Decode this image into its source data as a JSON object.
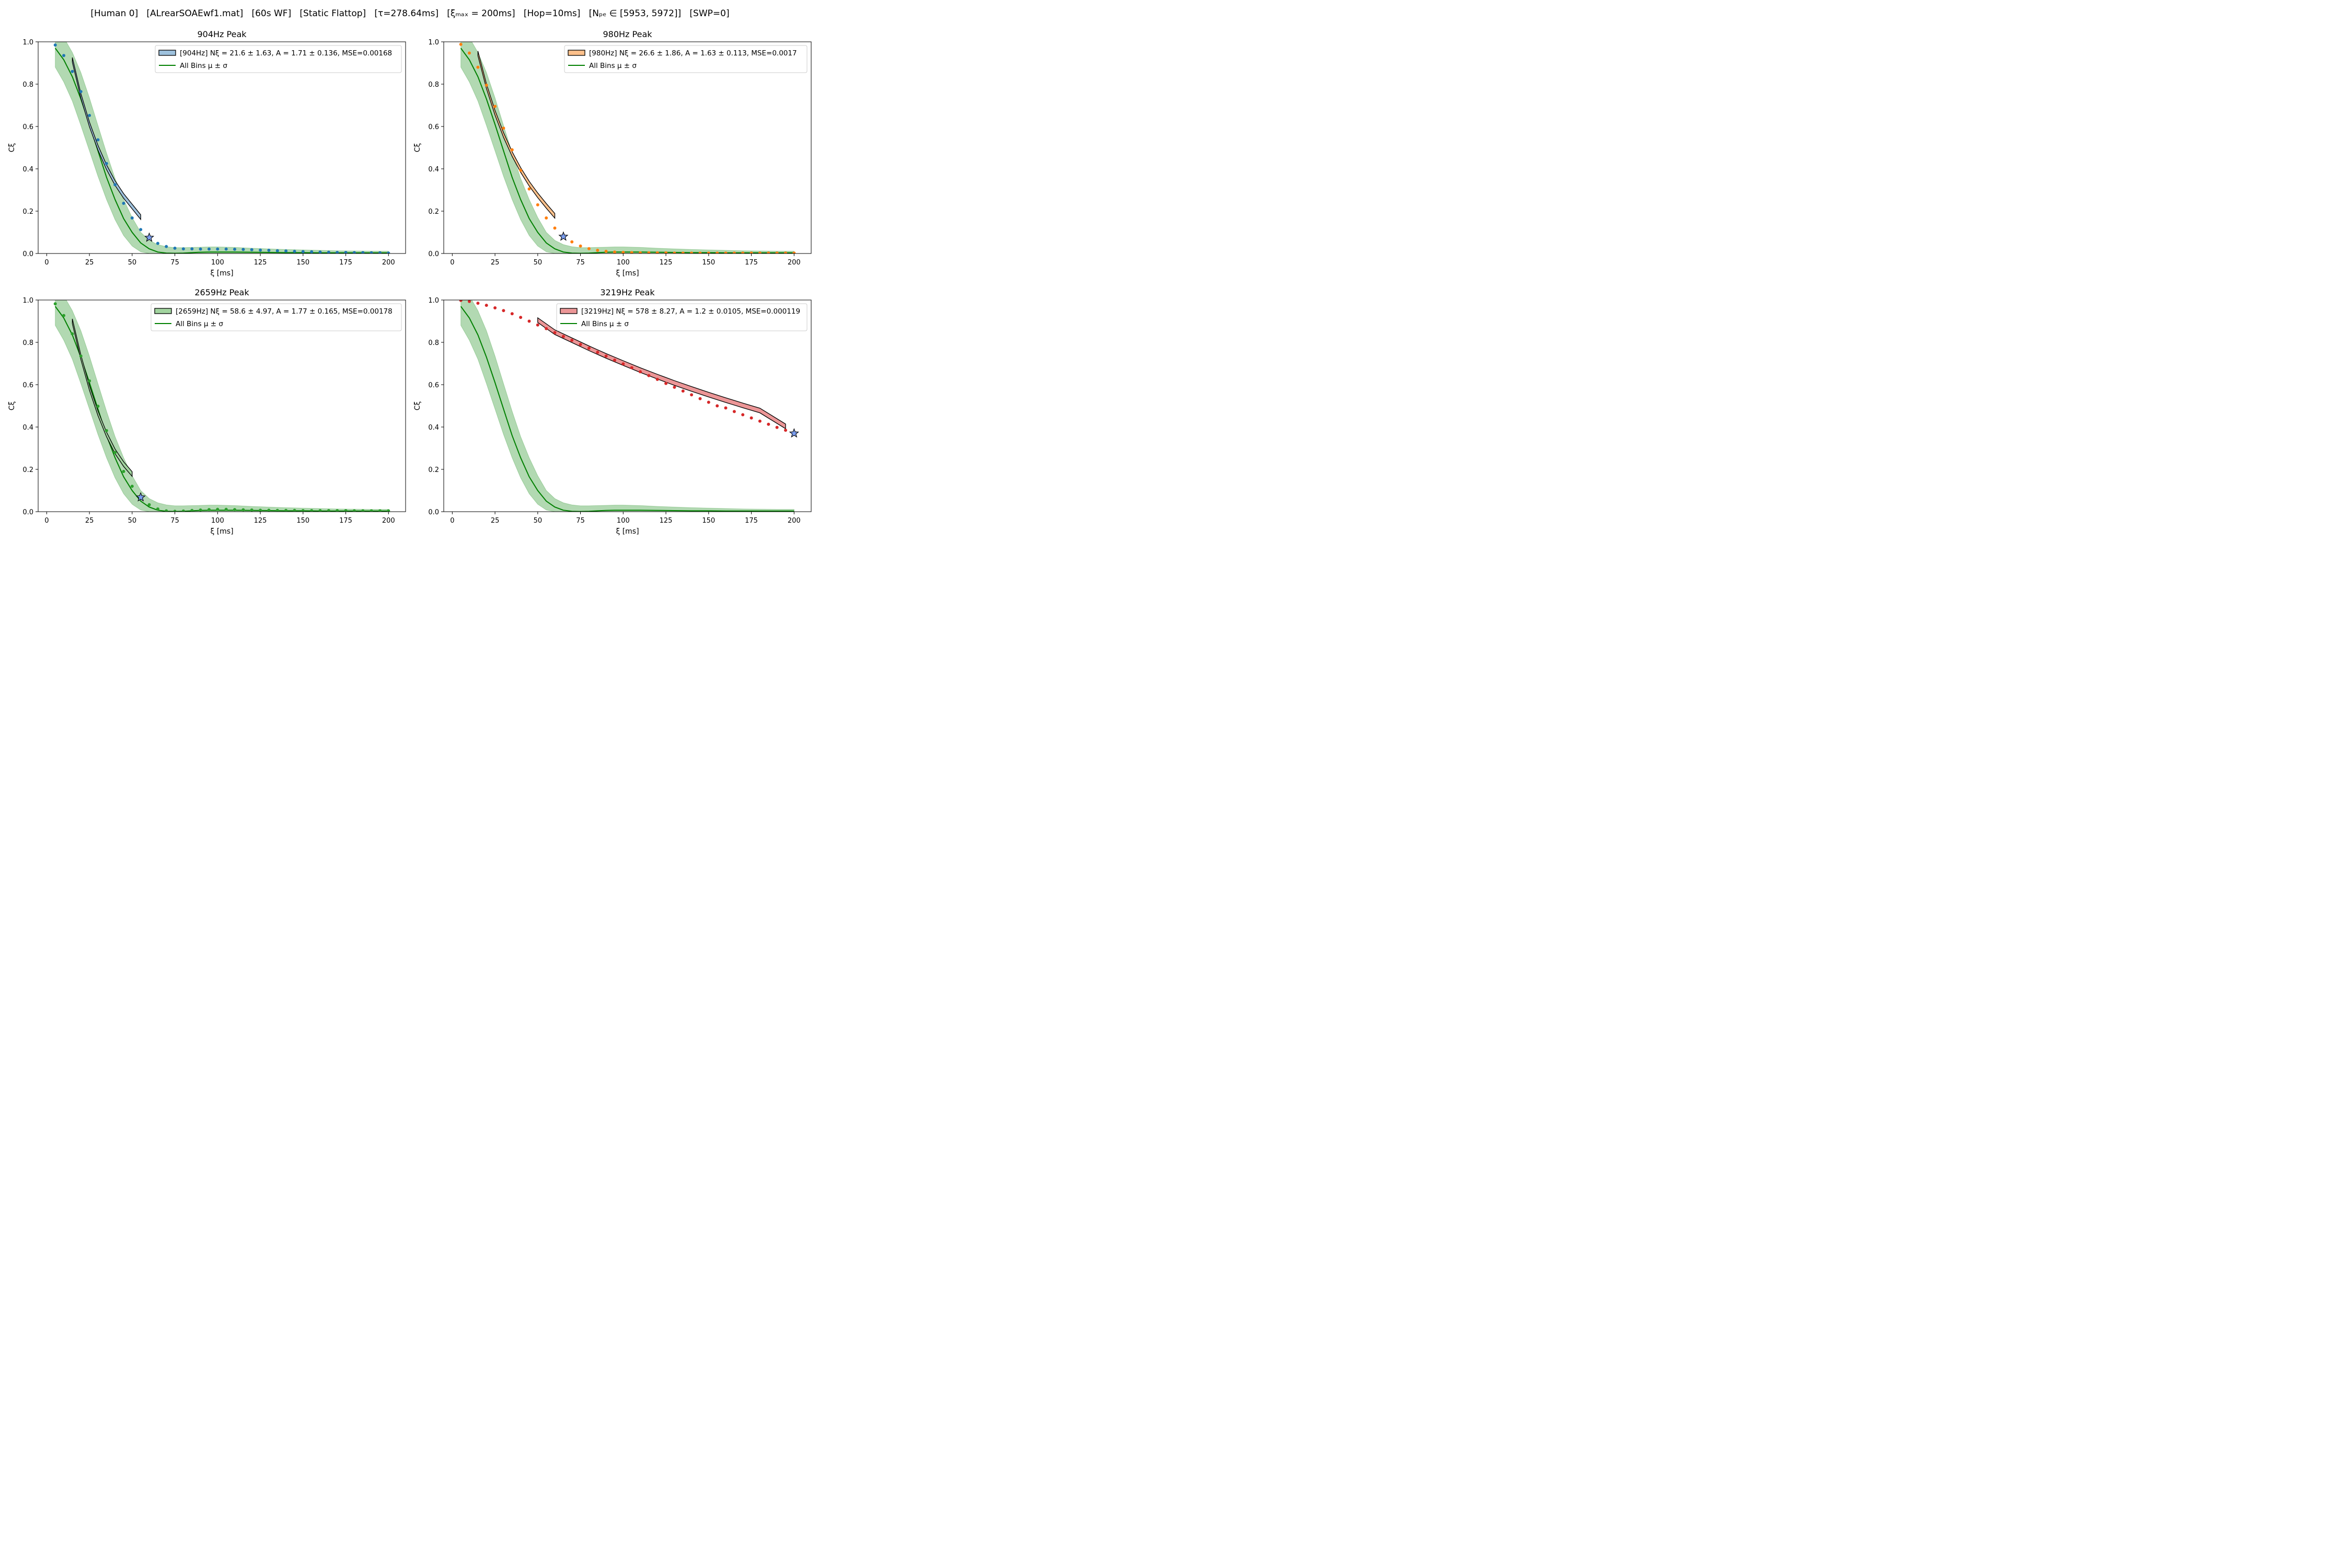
{
  "suptitle": "[Human 0]   [ALrearSOAEwf1.mat]   [60s WF]   [Static Flattop]   [τ=278.64ms]   [ξₘₐₓ = 200ms]   [Hop=10ms]   [Nₚₑ ∈ [5953, 5972]]   [SWP=0]",
  "chart_data": [
    {
      "type": "scatter",
      "title": "904Hz Peak",
      "xlabel": "ξ [ms]",
      "ylabel": "Cξ",
      "xlim": [
        -5,
        210
      ],
      "ylim": [
        0,
        1
      ],
      "xticks": [
        0,
        25,
        50,
        75,
        100,
        125,
        150,
        175,
        200
      ],
      "yticks": [
        0.0,
        0.2,
        0.4,
        0.6,
        0.8,
        1.0
      ],
      "color": "#1f77b4",
      "fit_fill": "#9ec1dd",
      "legend": {
        "placement": "upper right",
        "fit_label": "[904Hz] Nξ = 21.6 ± 1.63, A = 1.71 ± 0.136, MSE=0.00168",
        "mean_label": "All Bins μ ± σ"
      },
      "points": {
        "x": [
          5,
          10,
          15,
          20,
          25,
          30,
          35,
          40,
          45,
          50,
          55,
          60,
          65,
          70,
          75,
          80,
          85,
          90,
          95,
          100,
          105,
          110,
          115,
          120,
          125,
          130,
          135,
          140,
          145,
          150,
          155,
          160,
          165,
          170,
          175,
          180,
          185,
          190,
          195,
          200
        ],
        "y": [
          0.985,
          0.935,
          0.86,
          0.765,
          0.652,
          0.537,
          0.425,
          0.325,
          0.237,
          0.168,
          0.113,
          0.075,
          0.048,
          0.033,
          0.025,
          0.022,
          0.022,
          0.021,
          0.021,
          0.021,
          0.021,
          0.02,
          0.019,
          0.018,
          0.016,
          0.015,
          0.013,
          0.012,
          0.01,
          0.009,
          0.008,
          0.007,
          0.006,
          0.005,
          0.005,
          0.004,
          0.004,
          0.003,
          0.003,
          0.002
        ]
      },
      "fit": {
        "x": [
          15,
          20,
          25,
          30,
          35,
          40,
          45,
          50,
          55
        ],
        "y": [
          0.915,
          0.745,
          0.61,
          0.5,
          0.408,
          0.333,
          0.272,
          0.222,
          0.172
        ]
      },
      "star": {
        "x": 60,
        "y": 0.075
      }
    },
    {
      "type": "scatter",
      "title": "980Hz Peak",
      "xlabel": "ξ [ms]",
      "ylabel": "Cξ",
      "xlim": [
        -5,
        210
      ],
      "ylim": [
        0,
        1
      ],
      "xticks": [
        0,
        25,
        50,
        75,
        100,
        125,
        150,
        175,
        200
      ],
      "yticks": [
        0.0,
        0.2,
        0.4,
        0.6,
        0.8,
        1.0
      ],
      "color": "#ff7f0e",
      "fit_fill": "#fec08b",
      "legend": {
        "placement": "upper right",
        "fit_label": "[980Hz] Nξ = 26.6 ± 1.86, A = 1.63 ± 0.113, MSE=0.0017",
        "mean_label": "All Bins μ ± σ"
      },
      "points": {
        "x": [
          5,
          10,
          15,
          20,
          25,
          30,
          35,
          40,
          45,
          50,
          55,
          60,
          65,
          70,
          75,
          80,
          85,
          90,
          95,
          100,
          105,
          110,
          115,
          120,
          125,
          130,
          135,
          140,
          145,
          150,
          155,
          160,
          165,
          170,
          175,
          180,
          185,
          190,
          195,
          200
        ],
        "y": [
          0.988,
          0.947,
          0.88,
          0.795,
          0.695,
          0.592,
          0.49,
          0.393,
          0.305,
          0.23,
          0.168,
          0.12,
          0.08,
          0.055,
          0.035,
          0.023,
          0.015,
          0.01,
          0.007,
          0.005,
          0.004,
          0.003,
          0.003,
          0.003,
          0.003,
          0.002,
          0.002,
          0.002,
          0.002,
          0.002,
          0.002,
          0.002,
          0.002,
          0.002,
          0.002,
          0.002,
          0.002,
          0.002,
          0.002,
          0.002
        ]
      },
      "fit": {
        "x": [
          15,
          20,
          25,
          30,
          35,
          40,
          45,
          50,
          55,
          60
        ],
        "y": [
          0.945,
          0.79,
          0.665,
          0.56,
          0.47,
          0.395,
          0.33,
          0.275,
          0.225,
          0.178
        ]
      },
      "star": {
        "x": 65,
        "y": 0.08
      }
    },
    {
      "type": "scatter",
      "title": "2659Hz Peak",
      "xlabel": "ξ [ms]",
      "ylabel": "Cξ",
      "xlim": [
        -5,
        210
      ],
      "ylim": [
        0,
        1
      ],
      "xticks": [
        0,
        25,
        50,
        75,
        100,
        125,
        150,
        175,
        200
      ],
      "yticks": [
        0.0,
        0.2,
        0.4,
        0.6,
        0.8,
        1.0
      ],
      "color": "#2ca02c",
      "fit_fill": "#a2d49f",
      "legend": {
        "placement": "upper right",
        "fit_label": "[2659Hz] Nξ = 58.6 ± 4.97, A = 1.77 ± 0.165, MSE=0.00178",
        "mean_label": "All Bins μ ± σ"
      },
      "points": {
        "x": [
          5,
          10,
          15,
          20,
          25,
          30,
          35,
          40,
          45,
          50,
          55,
          60,
          65,
          70,
          75,
          80,
          85,
          90,
          95,
          100,
          105,
          110,
          115,
          120,
          125,
          130,
          135,
          140,
          145,
          150,
          155,
          160,
          165,
          170,
          175,
          180,
          185,
          190,
          195,
          200
        ],
        "y": [
          0.982,
          0.927,
          0.84,
          0.735,
          0.618,
          0.498,
          0.383,
          0.28,
          0.19,
          0.12,
          0.068,
          0.033,
          0.013,
          0.004,
          0.002,
          0.003,
          0.006,
          0.008,
          0.01,
          0.011,
          0.011,
          0.01,
          0.009,
          0.008,
          0.007,
          0.007,
          0.006,
          0.006,
          0.006,
          0.005,
          0.005,
          0.005,
          0.005,
          0.005,
          0.005,
          0.004,
          0.004,
          0.004,
          0.004,
          0.004
        ]
      },
      "fit": {
        "x": [
          15,
          20,
          25,
          30,
          35,
          40,
          45,
          50
        ],
        "y": [
          0.9,
          0.73,
          0.585,
          0.465,
          0.365,
          0.285,
          0.225,
          0.178
        ]
      },
      "star": {
        "x": 55,
        "y": 0.068
      }
    },
    {
      "type": "scatter",
      "title": "3219Hz Peak",
      "xlabel": "ξ [ms]",
      "ylabel": "Cξ",
      "xlim": [
        -5,
        210
      ],
      "ylim": [
        0,
        1
      ],
      "xticks": [
        0,
        25,
        50,
        75,
        100,
        125,
        150,
        175,
        200
      ],
      "yticks": [
        0.0,
        0.2,
        0.4,
        0.6,
        0.8,
        1.0
      ],
      "color": "#d62728",
      "fit_fill": "#ec9697",
      "legend": {
        "placement": "upper right",
        "fit_label": "[3219Hz] Nξ = 578 ± 8.27, A = 1.2 ± 0.0105, MSE=0.000119",
        "mean_label": "All Bins μ ± σ"
      },
      "points": {
        "x": [
          5,
          10,
          15,
          20,
          25,
          30,
          35,
          40,
          45,
          50,
          55,
          60,
          65,
          70,
          75,
          80,
          85,
          90,
          95,
          100,
          105,
          110,
          115,
          120,
          125,
          130,
          135,
          140,
          145,
          150,
          155,
          160,
          165,
          170,
          175,
          180,
          185,
          190,
          195,
          200
        ],
        "y": [
          0.998,
          0.993,
          0.985,
          0.975,
          0.963,
          0.95,
          0.935,
          0.918,
          0.9,
          0.882,
          0.865,
          0.846,
          0.828,
          0.81,
          0.79,
          0.772,
          0.753,
          0.735,
          0.716,
          0.698,
          0.68,
          0.661,
          0.643,
          0.625,
          0.606,
          0.588,
          0.57,
          0.552,
          0.534,
          0.517,
          0.5,
          0.49,
          0.473,
          0.458,
          0.443,
          0.428,
          0.413,
          0.398,
          0.385,
          0.372
        ]
      },
      "fit": {
        "x": [
          50,
          60,
          70,
          80,
          90,
          100,
          110,
          120,
          130,
          140,
          150,
          160,
          170,
          180,
          195
        ],
        "y": [
          0.905,
          0.848,
          0.81,
          0.772,
          0.736,
          0.702,
          0.669,
          0.638,
          0.608,
          0.58,
          0.553,
          0.527,
          0.502,
          0.478,
          0.403
        ]
      },
      "star": {
        "x": 200,
        "y": 0.37
      }
    }
  ],
  "all_bins": {
    "color": "#008000",
    "band_color": "#7fbf7f",
    "x": [
      5,
      10,
      15,
      20,
      25,
      30,
      35,
      40,
      45,
      50,
      55,
      60,
      65,
      70,
      75,
      80,
      85,
      90,
      95,
      100,
      110,
      120,
      130,
      140,
      150,
      160,
      170,
      180,
      190,
      200
    ],
    "mean": [
      0.97,
      0.915,
      0.835,
      0.73,
      0.61,
      0.485,
      0.36,
      0.255,
      0.165,
      0.1,
      0.05,
      0.022,
      0.007,
      0.002,
      0.001,
      0.002,
      0.004,
      0.006,
      0.007,
      0.007,
      0.007,
      0.006,
      0.005,
      0.004,
      0.004,
      0.003,
      0.003,
      0.003,
      0.003,
      0.003
    ],
    "upper": [
      1.06,
      1.02,
      0.95,
      0.855,
      0.735,
      0.605,
      0.475,
      0.355,
      0.255,
      0.17,
      0.1,
      0.062,
      0.042,
      0.032,
      0.028,
      0.028,
      0.029,
      0.03,
      0.031,
      0.031,
      0.029,
      0.025,
      0.022,
      0.019,
      0.017,
      0.015,
      0.013,
      0.012,
      0.011,
      0.011
    ],
    "lower": [
      0.88,
      0.81,
      0.72,
      0.605,
      0.485,
      0.365,
      0.255,
      0.16,
      0.085,
      0.035,
      0.008,
      0.0,
      0.0,
      0.0,
      0.0,
      0.0,
      0.0,
      0.0,
      0.0,
      0.0,
      0.0,
      0.0,
      0.0,
      0.0,
      0.0,
      0.0,
      0.0,
      0.0,
      0.0,
      0.0
    ]
  }
}
